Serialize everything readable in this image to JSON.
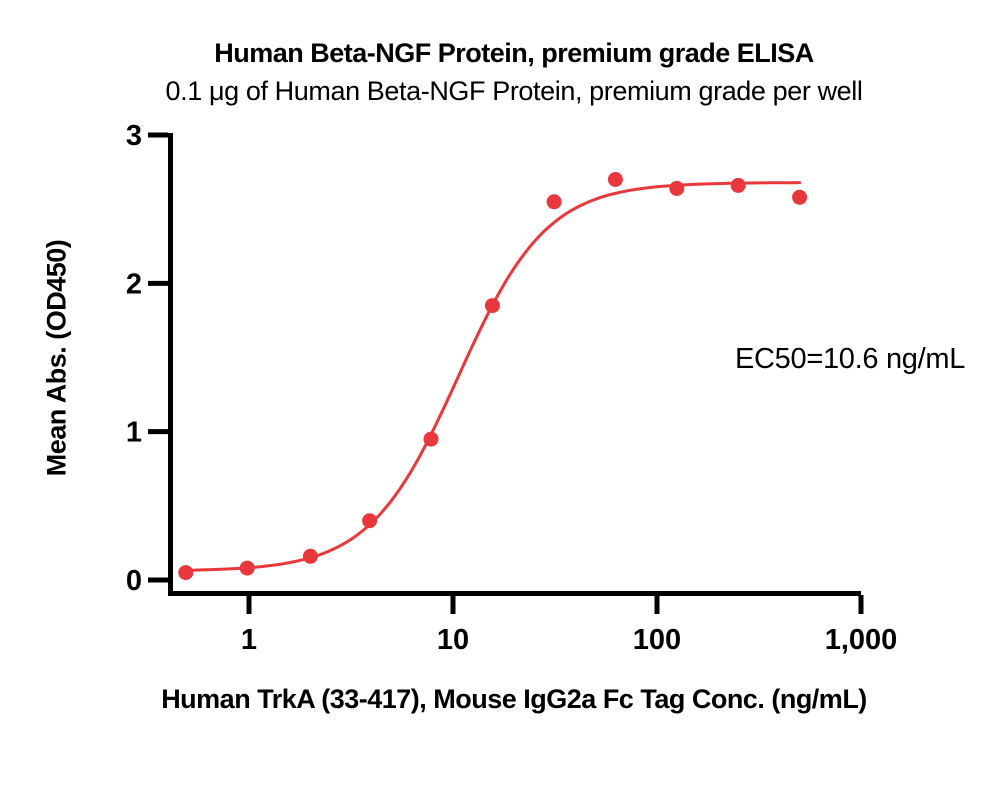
{
  "header": {
    "title": "Human Beta-NGF Protein, premium grade ELISA",
    "subtitle": "0.1 μg of Human Beta-NGF Protein, premium grade per well"
  },
  "chart_data": {
    "type": "scatter",
    "title": "Human Beta-NGF Protein, premium grade ELISA",
    "subtitle": "0.1 μg of Human Beta-NGF Protein, premium grade per well",
    "xlabel": "Human TrkA (33-417), Mouse IgG2a Fc Tag Conc. (ng/mL)",
    "ylabel": "Mean Abs. (OD450)",
    "x_scale": "log10",
    "xlim": [
      0.4,
      1000
    ],
    "ylim": [
      0,
      3
    ],
    "grid": false,
    "legend_position": "none",
    "x_ticks": [
      {
        "value": 1,
        "label": "1"
      },
      {
        "value": 10,
        "label": "10"
      },
      {
        "value": 100,
        "label": "100"
      },
      {
        "value": 1000,
        "label": "1,000"
      }
    ],
    "y_ticks": [
      {
        "value": 0,
        "label": "0"
      },
      {
        "value": 1,
        "label": "1"
      },
      {
        "value": 2,
        "label": "2"
      },
      {
        "value": 3,
        "label": "3"
      }
    ],
    "points": [
      {
        "x": 0.49,
        "y": 0.05
      },
      {
        "x": 0.98,
        "y": 0.08
      },
      {
        "x": 2.0,
        "y": 0.16
      },
      {
        "x": 3.9,
        "y": 0.4
      },
      {
        "x": 7.8,
        "y": 0.95
      },
      {
        "x": 15.6,
        "y": 1.85
      },
      {
        "x": 31.3,
        "y": 2.55
      },
      {
        "x": 62.5,
        "y": 2.7
      },
      {
        "x": 125,
        "y": 2.64
      },
      {
        "x": 250,
        "y": 2.66
      },
      {
        "x": 500,
        "y": 2.58
      }
    ],
    "fit_curve": {
      "model": "4PL",
      "bottom": 0.06,
      "top": 2.68,
      "ec50": 10.6,
      "hill": 2.0,
      "x_start": 0.49,
      "x_end": 500
    },
    "annotation": "EC50=10.6 ng/mL",
    "colors": {
      "series": "#E8383C",
      "axis": "#000000",
      "text": "#000000"
    }
  }
}
